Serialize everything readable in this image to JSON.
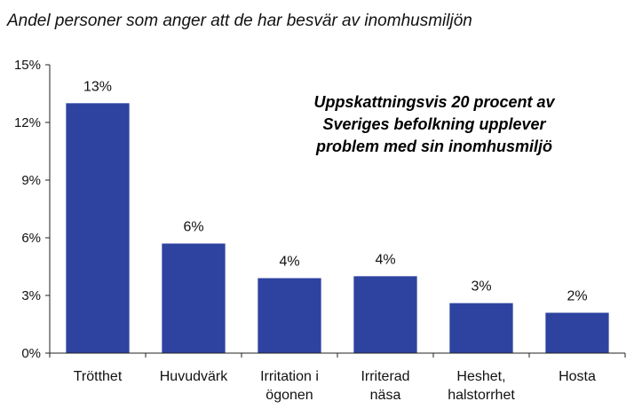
{
  "chart_data": {
    "type": "bar",
    "title": "Andel personer som anger att de har besvär av inomhusmiljön",
    "xlabel": "",
    "ylabel": "",
    "ylim": [
      0,
      15
    ],
    "yticks": [
      0,
      3,
      6,
      9,
      12,
      15
    ],
    "ytick_labels": [
      "0%",
      "3%",
      "6%",
      "9%",
      "12%",
      "15%"
    ],
    "categories": [
      [
        "Trötthet"
      ],
      [
        "Huvudvärk"
      ],
      [
        "Irritation i",
        "ögonen"
      ],
      [
        "Irriterad",
        "näsa"
      ],
      [
        "Heshet,",
        "halstorrhet"
      ],
      [
        "Hosta"
      ]
    ],
    "values": [
      13,
      5.7,
      3.9,
      4.0,
      2.6,
      2.1
    ],
    "data_labels": [
      "13%",
      "6%",
      "4%",
      "4%",
      "3%",
      "2%"
    ],
    "annotation": [
      "Uppskattningsvis 20 procent av",
      "Sveriges befolkning upplever",
      "problem med sin inomhusmiljö"
    ],
    "bar_color": "#2E43A0",
    "grid": false,
    "legend": "none"
  }
}
